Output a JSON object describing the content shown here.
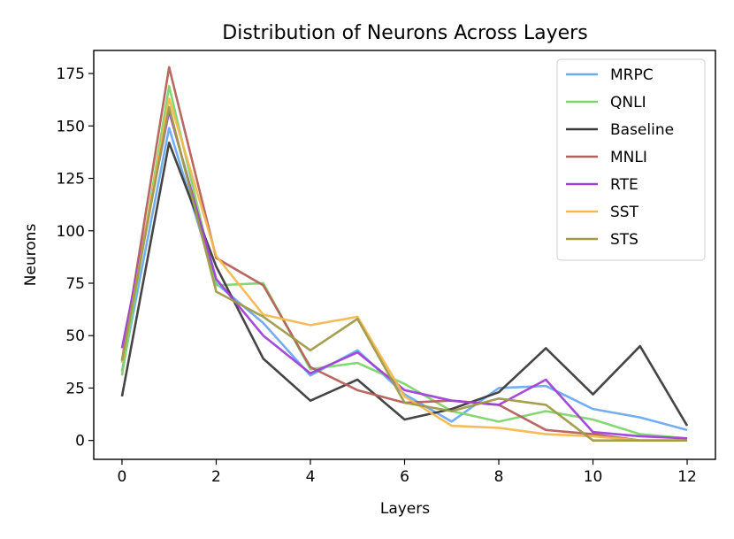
{
  "chart_data": {
    "type": "line",
    "title": "Distribution of Neurons Across Layers",
    "xlabel": "Layers",
    "ylabel": "Neurons",
    "xlim": [
      -0.6,
      12.6
    ],
    "ylim": [
      -9,
      186
    ],
    "xticks": [
      0,
      2,
      4,
      6,
      8,
      10,
      12
    ],
    "yticks": [
      0,
      25,
      50,
      75,
      100,
      125,
      150,
      175
    ],
    "grid": false,
    "legend": "top-right",
    "x": [
      0,
      1,
      2,
      3,
      4,
      5,
      6,
      7,
      8,
      9,
      10,
      11,
      12
    ],
    "series": [
      {
        "name": "MRPC",
        "color": "#6aaaf0",
        "values": [
          33,
          149,
          75,
          56,
          31,
          43,
          22,
          9,
          25,
          26,
          15,
          11,
          5
        ]
      },
      {
        "name": "QNLI",
        "color": "#7dd66b",
        "values": [
          31,
          169,
          74,
          75,
          34,
          37,
          27,
          14,
          9,
          14,
          10,
          3,
          1
        ]
      },
      {
        "name": "Baseline",
        "color": "#3b3b3b",
        "values": [
          21,
          142,
          83,
          39,
          19,
          29,
          10,
          15,
          23,
          44,
          22,
          45,
          7
        ]
      },
      {
        "name": "MNLI",
        "color": "#b5605a",
        "values": [
          38,
          178,
          87,
          74,
          35,
          24,
          18,
          19,
          17,
          5,
          3,
          0,
          0
        ]
      },
      {
        "name": "RTE",
        "color": "#a040d8",
        "values": [
          44,
          157,
          77,
          50,
          32,
          42,
          24,
          19,
          17,
          29,
          4,
          2,
          1
        ]
      },
      {
        "name": "SST",
        "color": "#f5b850",
        "values": [
          37,
          163,
          88,
          60,
          55,
          59,
          21,
          7,
          6,
          3,
          2,
          0,
          0
        ]
      },
      {
        "name": "STS",
        "color": "#a09a48",
        "values": [
          38,
          159,
          71,
          59,
          43,
          58,
          18,
          14,
          20,
          17,
          0,
          0,
          0
        ]
      }
    ]
  }
}
